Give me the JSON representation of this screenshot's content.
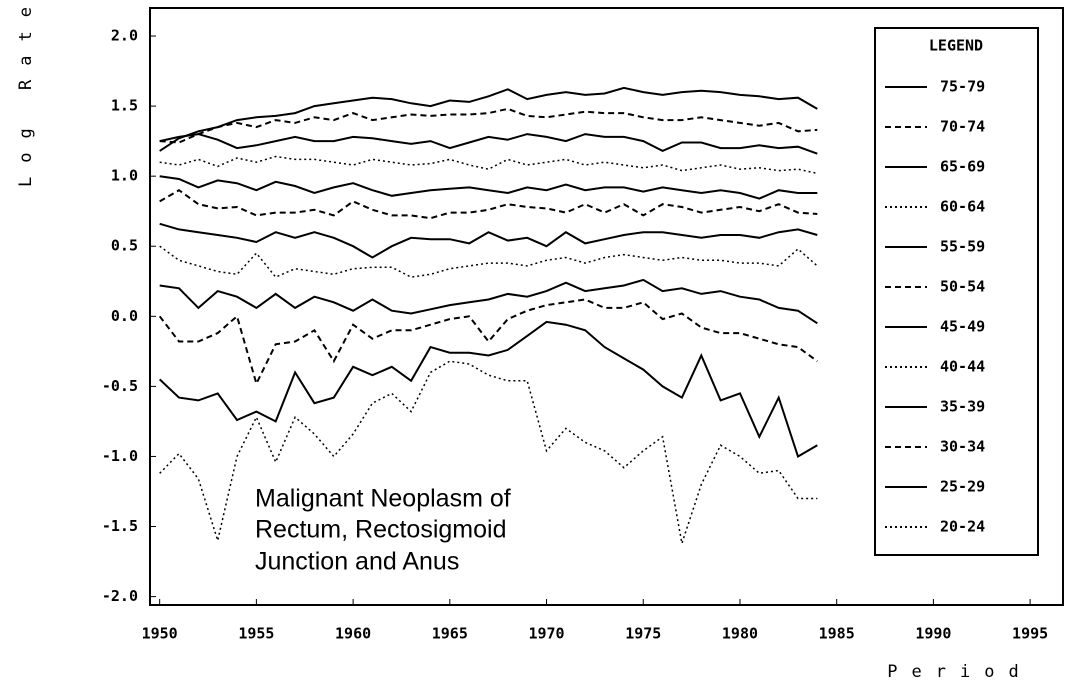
{
  "chart_data": {
    "type": "line",
    "ylabel": "Log Rate",
    "xlabel": "Period",
    "annotation": [
      "Malignant Neoplasm of",
      "Rectum, Rectosigmoid",
      "Junction and Anus"
    ],
    "legend_title": "LEGEND",
    "legend_position": "right",
    "x": [
      1950,
      1951,
      1952,
      1953,
      1954,
      1955,
      1956,
      1957,
      1958,
      1959,
      1960,
      1961,
      1962,
      1963,
      1964,
      1965,
      1966,
      1967,
      1968,
      1969,
      1970,
      1971,
      1972,
      1973,
      1974,
      1975,
      1976,
      1977,
      1978,
      1979,
      1980,
      1981,
      1982,
      1983,
      1984
    ],
    "xlim": [
      1949.5,
      1996.7
    ],
    "xticks": [
      1950,
      1955,
      1960,
      1965,
      1970,
      1975,
      1980,
      1985,
      1990,
      1995
    ],
    "ylim": [
      -2.06,
      2.2
    ],
    "yticks": [
      {
        "value": 2,
        "label": "2.0"
      },
      {
        "value": 1.5,
        "label": "1.5"
      },
      {
        "value": 1,
        "label": "1.0"
      },
      {
        "value": 0.5,
        "label": "0.5"
      },
      {
        "value": 0,
        "label": "0.0"
      },
      {
        "value": -0.5,
        "label": "-0.5"
      },
      {
        "value": -1,
        "label": "-1.0"
      },
      {
        "value": -1.5,
        "label": "-1.5"
      },
      {
        "value": -2,
        "label": "-2.0"
      }
    ],
    "series": [
      {
        "name": "75-79",
        "color": "#000",
        "dash": "solid",
        "values": [
          1.18,
          1.27,
          1.32,
          1.35,
          1.4,
          1.42,
          1.43,
          1.45,
          1.5,
          1.52,
          1.54,
          1.56,
          1.55,
          1.52,
          1.5,
          1.54,
          1.53,
          1.57,
          1.62,
          1.55,
          1.58,
          1.6,
          1.58,
          1.59,
          1.63,
          1.6,
          1.58,
          1.6,
          1.61,
          1.6,
          1.58,
          1.57,
          1.55,
          1.56,
          1.48
        ]
      },
      {
        "name": "70-74",
        "color": "#000",
        "dash": "dashed",
        "values": [
          1.25,
          1.24,
          1.3,
          1.35,
          1.38,
          1.35,
          1.4,
          1.38,
          1.42,
          1.4,
          1.45,
          1.4,
          1.42,
          1.44,
          1.43,
          1.44,
          1.44,
          1.45,
          1.48,
          1.43,
          1.42,
          1.44,
          1.46,
          1.45,
          1.45,
          1.42,
          1.4,
          1.4,
          1.42,
          1.4,
          1.38,
          1.36,
          1.38,
          1.32,
          1.33
        ]
      },
      {
        "name": "65-69",
        "color": "#000",
        "dash": "solid",
        "values": [
          1.25,
          1.28,
          1.3,
          1.26,
          1.2,
          1.22,
          1.25,
          1.28,
          1.25,
          1.25,
          1.28,
          1.27,
          1.25,
          1.23,
          1.25,
          1.2,
          1.24,
          1.28,
          1.26,
          1.3,
          1.28,
          1.25,
          1.3,
          1.28,
          1.28,
          1.25,
          1.18,
          1.24,
          1.24,
          1.2,
          1.2,
          1.22,
          1.2,
          1.21,
          1.16
        ]
      },
      {
        "name": "60-64",
        "color": "#000",
        "dash": "dotted",
        "values": [
          1.1,
          1.08,
          1.12,
          1.07,
          1.13,
          1.1,
          1.14,
          1.12,
          1.12,
          1.1,
          1.08,
          1.12,
          1.1,
          1.08,
          1.09,
          1.12,
          1.08,
          1.05,
          1.12,
          1.08,
          1.1,
          1.12,
          1.08,
          1.1,
          1.08,
          1.06,
          1.08,
          1.04,
          1.06,
          1.08,
          1.05,
          1.06,
          1.04,
          1.05,
          1.02
        ]
      },
      {
        "name": "55-59",
        "color": "#000",
        "dash": "solid",
        "values": [
          1.0,
          0.98,
          0.92,
          0.97,
          0.95,
          0.9,
          0.96,
          0.93,
          0.88,
          0.92,
          0.95,
          0.9,
          0.86,
          0.88,
          0.9,
          0.91,
          0.92,
          0.9,
          0.88,
          0.92,
          0.9,
          0.94,
          0.9,
          0.92,
          0.92,
          0.89,
          0.92,
          0.9,
          0.88,
          0.9,
          0.88,
          0.84,
          0.9,
          0.88,
          0.88
        ]
      },
      {
        "name": "50-54",
        "color": "#000",
        "dash": "dashed",
        "values": [
          0.82,
          0.9,
          0.8,
          0.77,
          0.78,
          0.72,
          0.74,
          0.74,
          0.76,
          0.72,
          0.82,
          0.76,
          0.72,
          0.72,
          0.7,
          0.74,
          0.74,
          0.76,
          0.8,
          0.78,
          0.77,
          0.74,
          0.8,
          0.74,
          0.8,
          0.72,
          0.8,
          0.78,
          0.74,
          0.76,
          0.78,
          0.75,
          0.8,
          0.74,
          0.73
        ]
      },
      {
        "name": "45-49",
        "color": "#000",
        "dash": "solid",
        "values": [
          0.66,
          0.62,
          0.6,
          0.58,
          0.56,
          0.53,
          0.6,
          0.56,
          0.6,
          0.56,
          0.5,
          0.42,
          0.5,
          0.56,
          0.55,
          0.55,
          0.52,
          0.6,
          0.54,
          0.56,
          0.5,
          0.6,
          0.52,
          0.55,
          0.58,
          0.6,
          0.6,
          0.58,
          0.56,
          0.58,
          0.58,
          0.56,
          0.6,
          0.62,
          0.58
        ]
      },
      {
        "name": "40-44",
        "color": "#000",
        "dash": "dotted",
        "values": [
          0.5,
          0.4,
          0.36,
          0.32,
          0.3,
          0.45,
          0.28,
          0.34,
          0.32,
          0.3,
          0.34,
          0.35,
          0.35,
          0.28,
          0.3,
          0.34,
          0.36,
          0.38,
          0.38,
          0.36,
          0.4,
          0.42,
          0.38,
          0.42,
          0.44,
          0.42,
          0.4,
          0.42,
          0.4,
          0.4,
          0.38,
          0.38,
          0.36,
          0.48,
          0.36
        ]
      },
      {
        "name": "35-39",
        "color": "#000",
        "dash": "solid",
        "values": [
          0.22,
          0.2,
          0.06,
          0.18,
          0.14,
          0.06,
          0.16,
          0.06,
          0.14,
          0.1,
          0.04,
          0.12,
          0.04,
          0.02,
          0.05,
          0.08,
          0.1,
          0.12,
          0.16,
          0.14,
          0.18,
          0.24,
          0.18,
          0.2,
          0.22,
          0.26,
          0.18,
          0.2,
          0.16,
          0.18,
          0.14,
          0.12,
          0.06,
          0.04,
          -0.05
        ]
      },
      {
        "name": "30-34",
        "color": "#000",
        "dash": "dashed",
        "values": [
          0.0,
          -0.18,
          -0.18,
          -0.12,
          0.0,
          -0.48,
          -0.2,
          -0.18,
          -0.1,
          -0.32,
          -0.06,
          -0.16,
          -0.1,
          -0.1,
          -0.06,
          -0.02,
          0.0,
          -0.18,
          -0.02,
          0.04,
          0.08,
          0.1,
          0.12,
          0.06,
          0.06,
          0.1,
          -0.02,
          0.02,
          -0.08,
          -0.12,
          -0.12,
          -0.16,
          -0.2,
          -0.22,
          -0.32
        ]
      },
      {
        "name": "25-29",
        "color": "#000",
        "dash": "solid",
        "values": [
          -0.45,
          -0.58,
          -0.6,
          -0.55,
          -0.74,
          -0.68,
          -0.75,
          -0.4,
          -0.62,
          -0.58,
          -0.36,
          -0.42,
          -0.36,
          -0.46,
          -0.22,
          -0.26,
          -0.26,
          -0.28,
          -0.24,
          -0.14,
          -0.04,
          -0.06,
          -0.1,
          -0.22,
          -0.3,
          -0.38,
          -0.5,
          -0.58,
          -0.28,
          -0.6,
          -0.55,
          -0.86,
          -0.58,
          -1.0,
          -0.92
        ]
      },
      {
        "name": "20-24",
        "color": "#000",
        "dash": "dotted",
        "values": [
          -1.12,
          -0.98,
          -1.16,
          -1.6,
          -1.0,
          -0.72,
          -1.04,
          -0.72,
          -0.84,
          -1.0,
          -0.84,
          -0.62,
          -0.55,
          -0.68,
          -0.4,
          -0.32,
          -0.34,
          -0.42,
          -0.46,
          -0.46,
          -0.96,
          -0.8,
          -0.9,
          -0.96,
          -1.08,
          -0.96,
          -0.86,
          -1.62,
          -1.2,
          -0.92,
          -1.0,
          -1.12,
          -1.1,
          -1.3,
          -1.3
        ]
      }
    ]
  }
}
